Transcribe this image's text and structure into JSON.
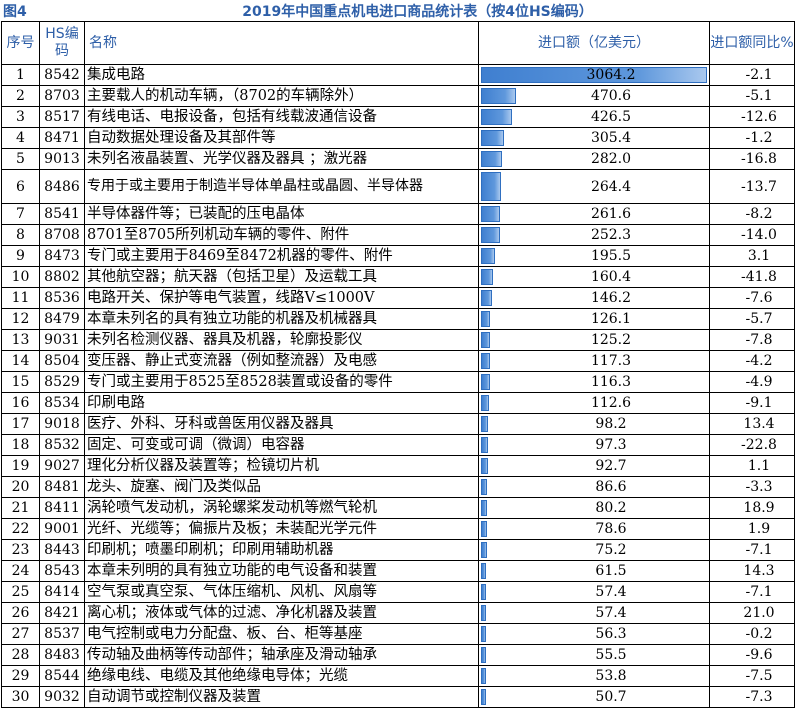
{
  "figure_label": "图4",
  "title": "2019年中国重点机电进口商品统计表（按4位HS编码）",
  "headers": {
    "seq": "序号",
    "hs": "HS编码",
    "name": "名称",
    "value": "进口额（亿美元）",
    "change": "进口额同比%"
  },
  "bar_color": "#4a86d4",
  "max_value": 3064.2,
  "rows": [
    {
      "seq": "1",
      "hs": "8542",
      "name": "集成电路",
      "value": 3064.2,
      "value_text": "3064.2",
      "change": "-2.1"
    },
    {
      "seq": "2",
      "hs": "8703",
      "name": "主要载人的机动车辆，（8702的车辆除外）",
      "value": 470.6,
      "value_text": "470.6",
      "change": "-5.1"
    },
    {
      "seq": "3",
      "hs": "8517",
      "name": "有线电话、电报设备，包括有线载波通信设备",
      "value": 426.5,
      "value_text": "426.5",
      "change": "-12.6"
    },
    {
      "seq": "4",
      "hs": "8471",
      "name": "自动数据处理设备及其部件等",
      "value": 305.4,
      "value_text": "305.4",
      "change": "-1.2"
    },
    {
      "seq": "5",
      "hs": "9013",
      "name": "未列名液晶装置、光学仪器及器具 ；激光器",
      "value": 282.0,
      "value_text": "282.0",
      "change": "-16.8"
    },
    {
      "seq": "6",
      "hs": "8486",
      "name": "专用于或主要用于制造半导体单晶柱或晶圆、半导体器",
      "value": 264.4,
      "value_text": "264.4",
      "change": "-13.7"
    },
    {
      "seq": "7",
      "hs": "8541",
      "name": "半导体器件等；已装配的压电晶体",
      "value": 261.6,
      "value_text": "261.6",
      "change": "-8.2"
    },
    {
      "seq": "8",
      "hs": "8708",
      "name": "8701至8705所列机动车辆的零件、附件",
      "value": 252.3,
      "value_text": "252.3",
      "change": "-14.0"
    },
    {
      "seq": "9",
      "hs": "8473",
      "name": "专门或主要用于8469至8472机器的零件、附件",
      "value": 195.5,
      "value_text": "195.5",
      "change": "3.1"
    },
    {
      "seq": "10",
      "hs": "8802",
      "name": "其他航空器；航天器（包括卫星）及运载工具",
      "value": 160.4,
      "value_text": "160.4",
      "change": "-41.8"
    },
    {
      "seq": "11",
      "hs": "8536",
      "name": "电路开关、保护等电气装置，线路V≤1000V",
      "value": 146.2,
      "value_text": "146.2",
      "change": "-7.6"
    },
    {
      "seq": "12",
      "hs": "8479",
      "name": "本章未列名的具有独立功能的机器及机械器具",
      "value": 126.1,
      "value_text": "126.1",
      "change": "-5.7"
    },
    {
      "seq": "13",
      "hs": "9031",
      "name": "未列名检测仪器、器具及机器，轮廓投影仪",
      "value": 125.2,
      "value_text": "125.2",
      "change": "-7.8"
    },
    {
      "seq": "14",
      "hs": "8504",
      "name": "变压器、静止式变流器（例如整流器）及电感",
      "value": 117.3,
      "value_text": "117.3",
      "change": "-4.2"
    },
    {
      "seq": "15",
      "hs": "8529",
      "name": "专门或主要用于8525至8528装置或设备的零件",
      "value": 116.3,
      "value_text": "116.3",
      "change": "-4.9"
    },
    {
      "seq": "16",
      "hs": "8534",
      "name": "印刷电路",
      "value": 112.6,
      "value_text": "112.6",
      "change": "-9.1"
    },
    {
      "seq": "17",
      "hs": "9018",
      "name": "医疗、外科、牙科或兽医用仪器及器具",
      "value": 98.2,
      "value_text": "98.2",
      "change": "13.4"
    },
    {
      "seq": "18",
      "hs": "8532",
      "name": "固定、可变或可调（微调）电容器",
      "value": 97.3,
      "value_text": "97.3",
      "change": "-22.8"
    },
    {
      "seq": "19",
      "hs": "9027",
      "name": "理化分析仪器及装置等；检镜切片机",
      "value": 92.7,
      "value_text": "92.7",
      "change": "1.1"
    },
    {
      "seq": "20",
      "hs": "8481",
      "name": "龙头、旋塞、阀门及类似品",
      "value": 86.6,
      "value_text": "86.6",
      "change": "-3.3"
    },
    {
      "seq": "21",
      "hs": "8411",
      "name": "涡轮喷气发动机，涡轮螺桨发动机等燃气轮机",
      "value": 80.2,
      "value_text": "80.2",
      "change": "18.9"
    },
    {
      "seq": "22",
      "hs": "9001",
      "name": "光纤、光缆等；偏振片及板；未装配光学元件",
      "value": 78.6,
      "value_text": "78.6",
      "change": "1.9"
    },
    {
      "seq": "23",
      "hs": "8443",
      "name": "印刷机；喷墨印刷机；印刷用辅助机器",
      "value": 75.2,
      "value_text": "75.2",
      "change": "-7.1"
    },
    {
      "seq": "24",
      "hs": "8543",
      "name": "本章未列明的具有独立功能的电气设备和装置",
      "value": 61.5,
      "value_text": "61.5",
      "change": "14.3"
    },
    {
      "seq": "25",
      "hs": "8414",
      "name": "空气泵或真空泵、气体压缩机、风机、风扇等",
      "value": 57.4,
      "value_text": "57.4",
      "change": "-7.1"
    },
    {
      "seq": "26",
      "hs": "8421",
      "name": "离心机；液体或气体的过滤、净化机器及装置",
      "value": 57.4,
      "value_text": "57.4",
      "change": "21.0"
    },
    {
      "seq": "27",
      "hs": "8537",
      "name": "电气控制或电力分配盘、板、台、柜等基座",
      "value": 56.3,
      "value_text": "56.3",
      "change": "-0.2"
    },
    {
      "seq": "28",
      "hs": "8483",
      "name": "传动轴及曲柄等传动部件；轴承座及滑动轴承",
      "value": 55.5,
      "value_text": "55.5",
      "change": "-9.6"
    },
    {
      "seq": "29",
      "hs": "8544",
      "name": "绝缘电线、电缆及其他绝缘电导体；光缆",
      "value": 53.8,
      "value_text": "53.8",
      "change": "-7.5"
    },
    {
      "seq": "30",
      "hs": "9032",
      "name": "自动调节或控制仪器及装置",
      "value": 50.7,
      "value_text": "50.7",
      "change": "-7.3"
    }
  ]
}
